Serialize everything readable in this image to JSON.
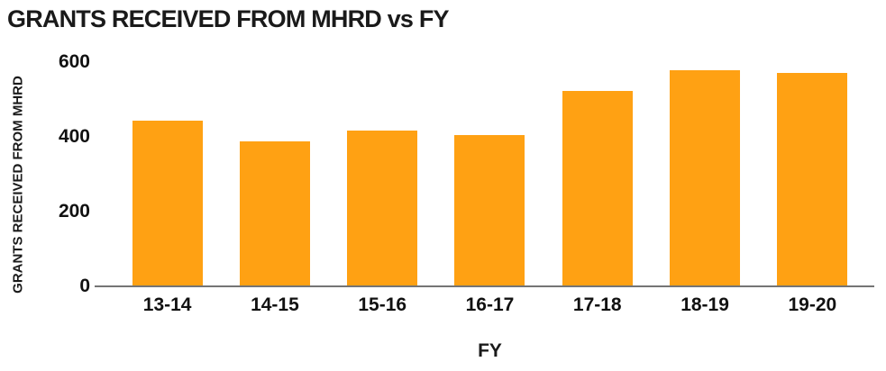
{
  "chart_data": {
    "type": "bar",
    "title": "GRANTS RECEIVED FROM MHRD vs FY",
    "xlabel": "FY",
    "ylabel": "GRANTS RECEIVED FROM MHRD",
    "categories": [
      "13-14",
      "14-15",
      "15-16",
      "16-17",
      "17-18",
      "18-19",
      "19-20"
    ],
    "values": [
      445,
      390,
      420,
      407,
      525,
      580,
      573
    ],
    "ylim": [
      0,
      600
    ],
    "yticks": [
      600,
      400,
      200,
      0
    ],
    "grid": false,
    "legend": false,
    "bar_color": "#FFA113",
    "axis_color": "#757575",
    "text_color": "#1a1a1a"
  }
}
